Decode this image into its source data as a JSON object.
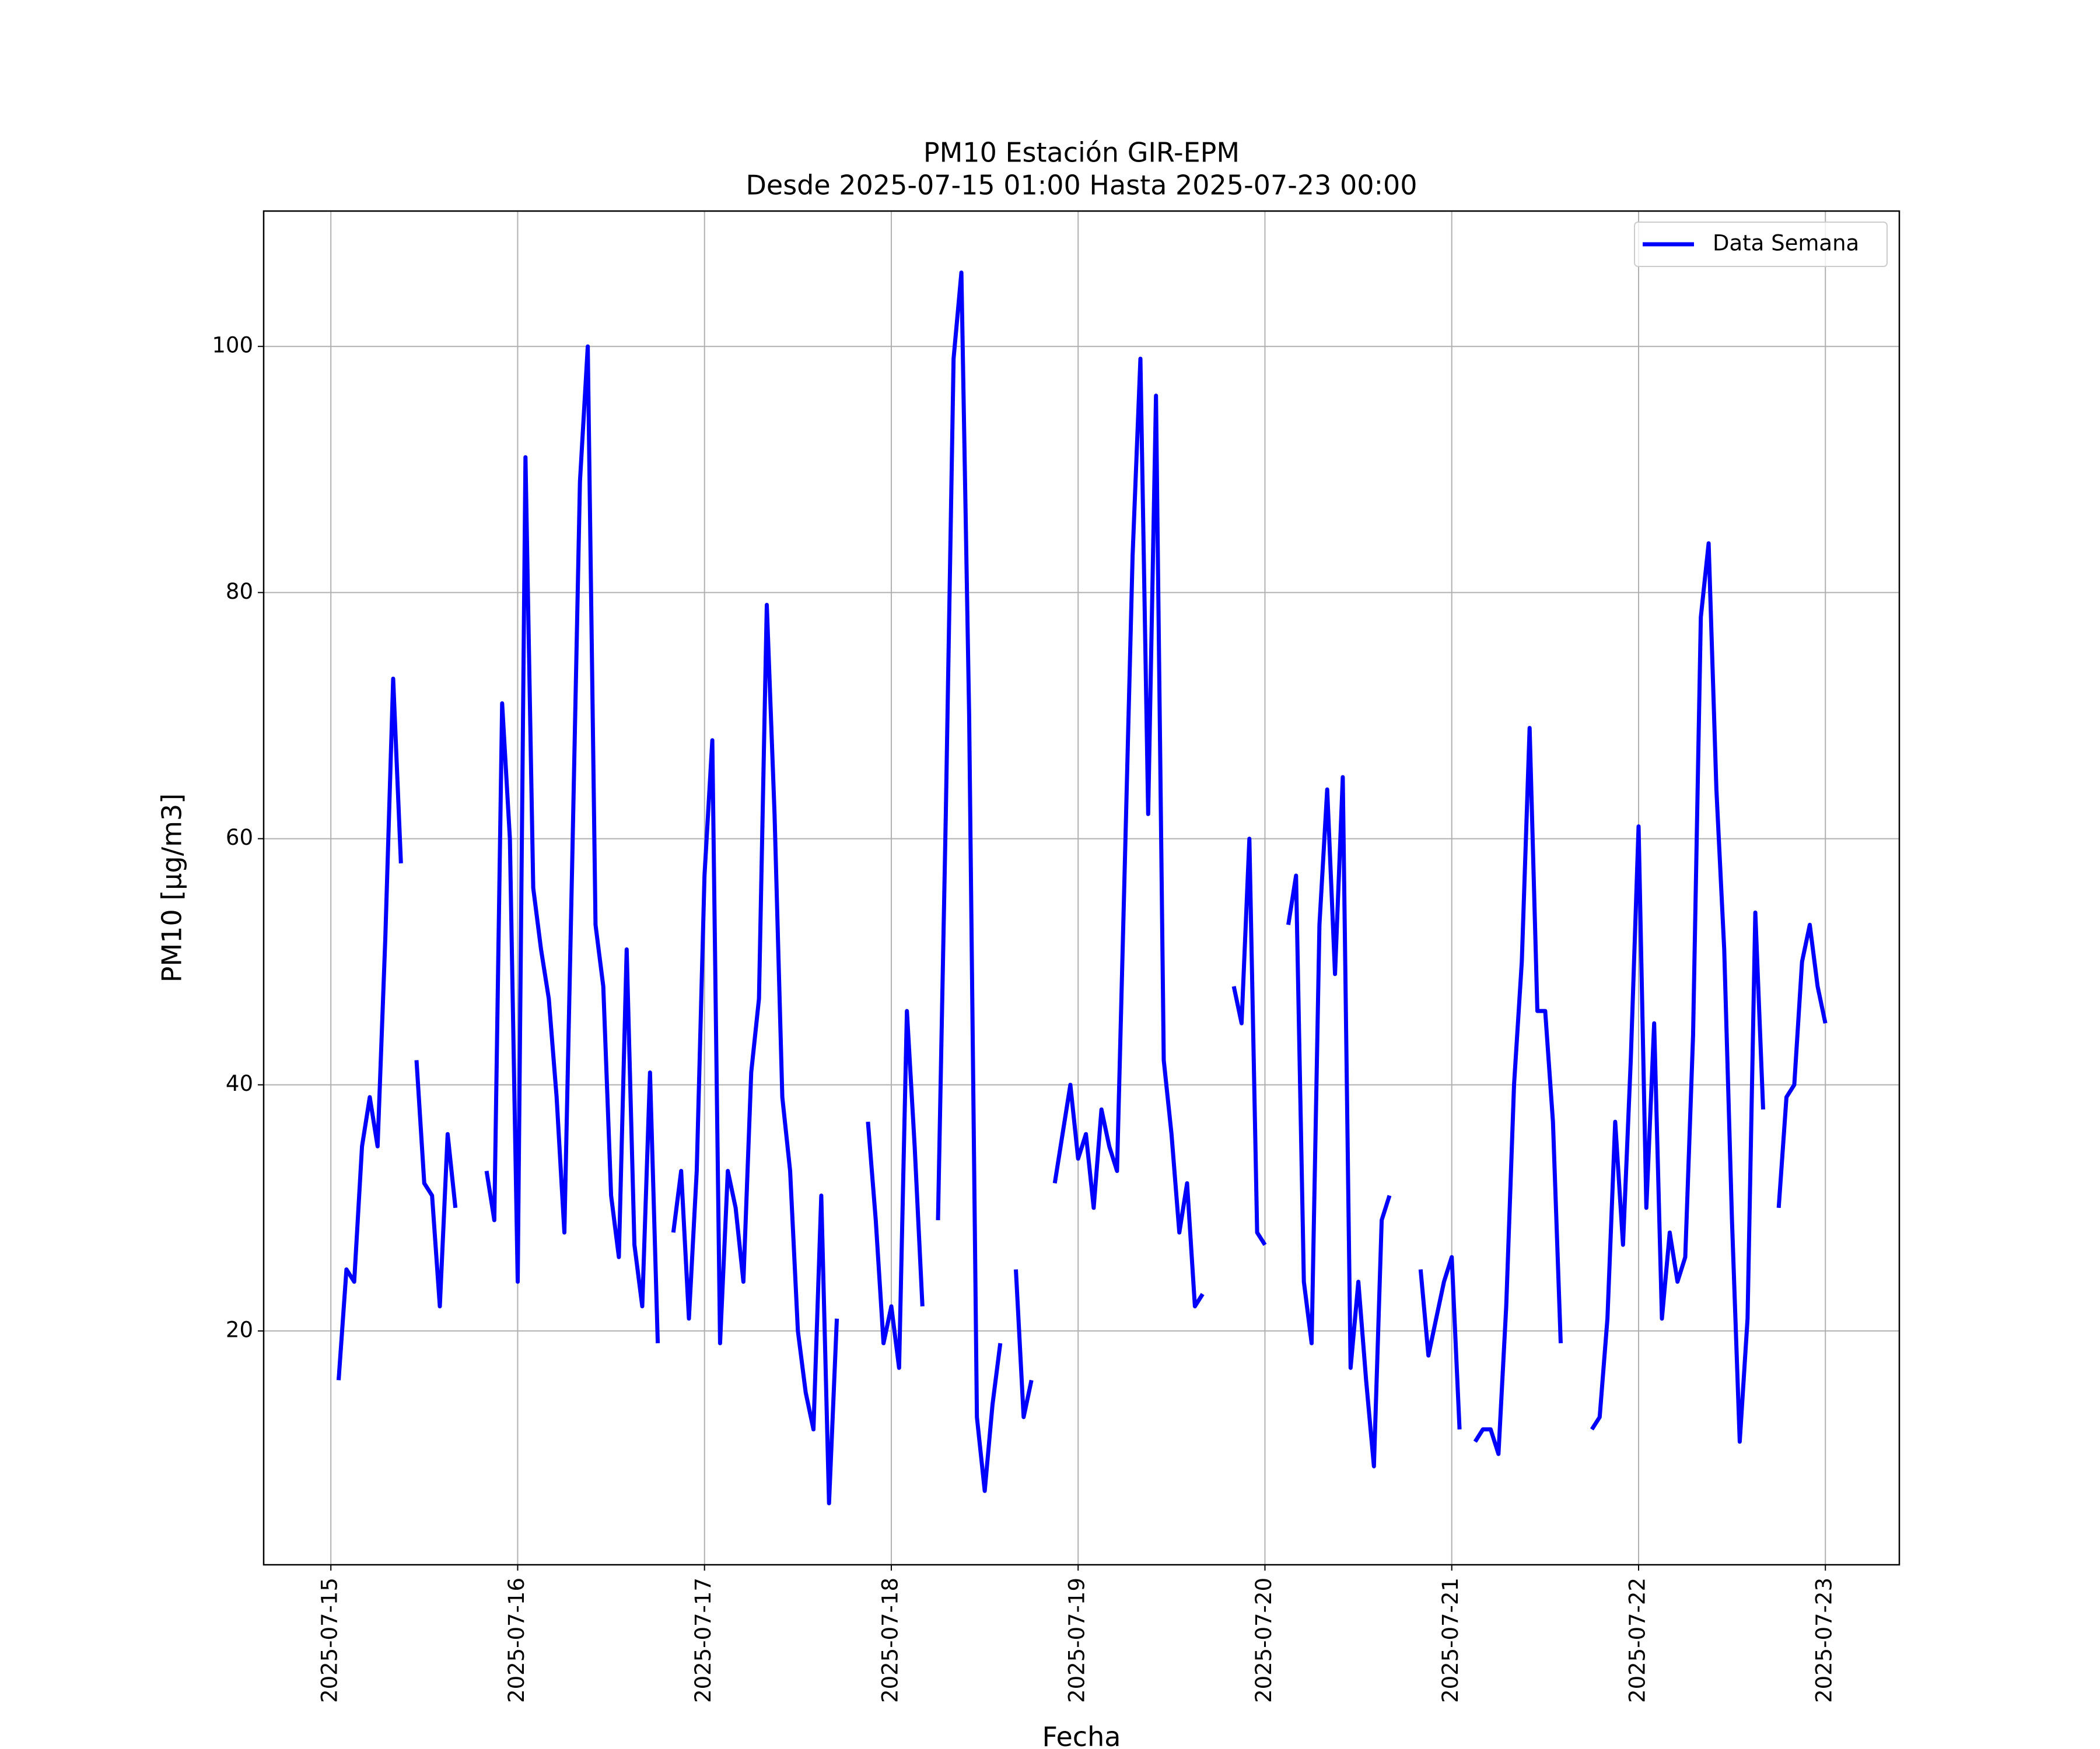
{
  "chart_data": {
    "type": "line",
    "title": "PM10 Estación GIR-EPM",
    "subtitle": "Desde 2025-07-15 01:00 Hasta 2025-07-23 00:00",
    "x_label": "Fecha",
    "y_label": "PM10 [μg/m3]",
    "legend": "upper right",
    "grid": true,
    "xlim": [
      "2025-07-14 15:22",
      "2025-07-23 09:30"
    ],
    "xticks": [
      "2025-07-15",
      "2025-07-16",
      "2025-07-17",
      "2025-07-18",
      "2025-07-19",
      "2025-07-20",
      "2025-07-21",
      "2025-07-22",
      "2025-07-23"
    ],
    "ylim": [
      1,
      111
    ],
    "yticks": [
      20,
      40,
      60,
      80,
      100
    ],
    "x": [
      "2025-07-15 01:00",
      "2025-07-15 02:00",
      "2025-07-15 03:00",
      "2025-07-15 04:00",
      "2025-07-15 05:00",
      "2025-07-15 06:00",
      "2025-07-15 07:00",
      "2025-07-15 08:00",
      "2025-07-15 09:00",
      "2025-07-15 10:00",
      "2025-07-15 11:00",
      "2025-07-15 12:00",
      "2025-07-15 13:00",
      "2025-07-15 14:00",
      "2025-07-15 15:00",
      "2025-07-15 16:00",
      "2025-07-15 17:00",
      "2025-07-15 18:00",
      "2025-07-15 19:00",
      "2025-07-15 20:00",
      "2025-07-15 21:00",
      "2025-07-15 22:00",
      "2025-07-15 23:00",
      "2025-07-16 00:00",
      "2025-07-16 01:00",
      "2025-07-16 02:00",
      "2025-07-16 03:00",
      "2025-07-16 04:00",
      "2025-07-16 05:00",
      "2025-07-16 06:00",
      "2025-07-16 07:00",
      "2025-07-16 08:00",
      "2025-07-16 09:00",
      "2025-07-16 10:00",
      "2025-07-16 11:00",
      "2025-07-16 12:00",
      "2025-07-16 13:00",
      "2025-07-16 14:00",
      "2025-07-16 15:00",
      "2025-07-16 16:00",
      "2025-07-16 17:00",
      "2025-07-16 18:00",
      "2025-07-16 19:00",
      "2025-07-16 20:00",
      "2025-07-16 21:00",
      "2025-07-16 22:00",
      "2025-07-16 23:00",
      "2025-07-17 00:00",
      "2025-07-17 01:00",
      "2025-07-17 02:00",
      "2025-07-17 03:00",
      "2025-07-17 04:00",
      "2025-07-17 05:00",
      "2025-07-17 06:00",
      "2025-07-17 07:00",
      "2025-07-17 08:00",
      "2025-07-17 09:00",
      "2025-07-17 10:00",
      "2025-07-17 11:00",
      "2025-07-17 12:00",
      "2025-07-17 13:00",
      "2025-07-17 14:00",
      "2025-07-17 15:00",
      "2025-07-17 16:00",
      "2025-07-17 17:00",
      "2025-07-17 18:00",
      "2025-07-17 19:00",
      "2025-07-17 20:00",
      "2025-07-17 21:00",
      "2025-07-17 22:00",
      "2025-07-17 23:00",
      "2025-07-18 00:00",
      "2025-07-18 01:00",
      "2025-07-18 02:00",
      "2025-07-18 03:00",
      "2025-07-18 04:00",
      "2025-07-18 05:00",
      "2025-07-18 06:00",
      "2025-07-18 07:00",
      "2025-07-18 08:00",
      "2025-07-18 09:00",
      "2025-07-18 10:00",
      "2025-07-18 11:00",
      "2025-07-18 12:00",
      "2025-07-18 13:00",
      "2025-07-18 14:00",
      "2025-07-18 15:00",
      "2025-07-18 16:00",
      "2025-07-18 17:00",
      "2025-07-18 18:00",
      "2025-07-18 19:00",
      "2025-07-18 20:00",
      "2025-07-18 21:00",
      "2025-07-18 22:00",
      "2025-07-18 23:00",
      "2025-07-19 00:00",
      "2025-07-19 01:00",
      "2025-07-19 02:00",
      "2025-07-19 03:00",
      "2025-07-19 04:00",
      "2025-07-19 05:00",
      "2025-07-19 06:00",
      "2025-07-19 07:00",
      "2025-07-19 08:00",
      "2025-07-19 09:00",
      "2025-07-19 10:00",
      "2025-07-19 11:00",
      "2025-07-19 12:00",
      "2025-07-19 13:00",
      "2025-07-19 14:00",
      "2025-07-19 15:00",
      "2025-07-19 16:00",
      "2025-07-19 17:00",
      "2025-07-19 18:00",
      "2025-07-19 19:00",
      "2025-07-19 20:00",
      "2025-07-19 21:00",
      "2025-07-19 22:00",
      "2025-07-19 23:00",
      "2025-07-20 00:00",
      "2025-07-20 01:00",
      "2025-07-20 02:00",
      "2025-07-20 03:00",
      "2025-07-20 04:00",
      "2025-07-20 05:00",
      "2025-07-20 06:00",
      "2025-07-20 07:00",
      "2025-07-20 08:00",
      "2025-07-20 09:00",
      "2025-07-20 10:00",
      "2025-07-20 11:00",
      "2025-07-20 12:00",
      "2025-07-20 13:00",
      "2025-07-20 14:00",
      "2025-07-20 15:00",
      "2025-07-20 16:00",
      "2025-07-20 17:00",
      "2025-07-20 18:00",
      "2025-07-20 19:00",
      "2025-07-20 20:00",
      "2025-07-20 21:00",
      "2025-07-20 22:00",
      "2025-07-20 23:00",
      "2025-07-21 00:00",
      "2025-07-21 01:00",
      "2025-07-21 02:00",
      "2025-07-21 03:00",
      "2025-07-21 04:00",
      "2025-07-21 05:00",
      "2025-07-21 06:00",
      "2025-07-21 07:00",
      "2025-07-21 08:00",
      "2025-07-21 09:00",
      "2025-07-21 10:00",
      "2025-07-21 11:00",
      "2025-07-21 12:00",
      "2025-07-21 13:00",
      "2025-07-21 14:00",
      "2025-07-21 15:00",
      "2025-07-21 16:00",
      "2025-07-21 17:00",
      "2025-07-21 18:00",
      "2025-07-21 19:00",
      "2025-07-21 20:00",
      "2025-07-21 21:00",
      "2025-07-21 22:00",
      "2025-07-21 23:00",
      "2025-07-22 00:00",
      "2025-07-22 01:00",
      "2025-07-22 02:00",
      "2025-07-22 03:00",
      "2025-07-22 04:00",
      "2025-07-22 05:00",
      "2025-07-22 06:00",
      "2025-07-22 07:00",
      "2025-07-22 08:00",
      "2025-07-22 09:00",
      "2025-07-22 10:00",
      "2025-07-22 11:00",
      "2025-07-22 12:00",
      "2025-07-22 13:00",
      "2025-07-22 14:00",
      "2025-07-22 15:00",
      "2025-07-22 16:00",
      "2025-07-22 17:00",
      "2025-07-22 18:00",
      "2025-07-22 19:00",
      "2025-07-22 20:00",
      "2025-07-22 21:00",
      "2025-07-22 22:00",
      "2025-07-22 23:00",
      "2025-07-23 00:00"
    ],
    "series": [
      {
        "name": "Data Semana",
        "color": "#0000ff",
        "values": [
          16,
          25,
          24,
          35,
          39,
          35,
          52,
          73,
          58,
          null,
          42,
          32,
          31,
          22,
          36,
          30,
          null,
          null,
          null,
          33,
          29,
          71,
          60,
          24,
          91,
          56,
          51,
          47,
          39,
          28,
          58,
          89,
          100,
          53,
          48,
          31,
          26,
          51,
          27,
          22,
          41,
          19,
          null,
          28,
          33,
          21,
          33,
          57,
          68,
          19,
          33,
          30,
          24,
          41,
          47,
          79,
          62,
          39,
          33,
          20,
          15,
          12,
          31,
          6,
          21,
          null,
          null,
          null,
          37,
          29,
          19,
          22,
          17,
          46,
          35,
          22,
          null,
          29,
          62,
          99,
          106,
          70,
          13,
          7,
          14,
          19,
          null,
          25,
          13,
          16,
          null,
          null,
          32,
          36,
          40,
          34,
          36,
          30,
          38,
          35,
          33,
          58,
          83,
          99,
          62,
          96,
          42,
          36,
          28,
          32,
          22,
          23,
          null,
          null,
          null,
          48,
          45,
          60,
          28,
          27,
          null,
          null,
          53,
          57,
          24,
          19,
          53,
          64,
          49,
          65,
          17,
          24,
          16,
          9,
          29,
          31,
          null,
          null,
          null,
          25,
          18,
          21,
          24,
          26,
          12,
          null,
          11,
          12,
          12,
          10,
          22,
          40,
          50,
          69,
          46,
          46,
          37,
          19,
          null,
          null,
          null,
          12,
          13,
          21,
          37,
          27,
          42,
          61,
          30,
          45,
          21,
          28,
          24,
          26,
          44,
          78,
          84,
          64,
          51,
          29,
          11,
          21,
          54,
          38,
          null,
          30,
          39,
          40,
          50,
          53,
          48,
          45
        ]
      }
    ]
  }
}
